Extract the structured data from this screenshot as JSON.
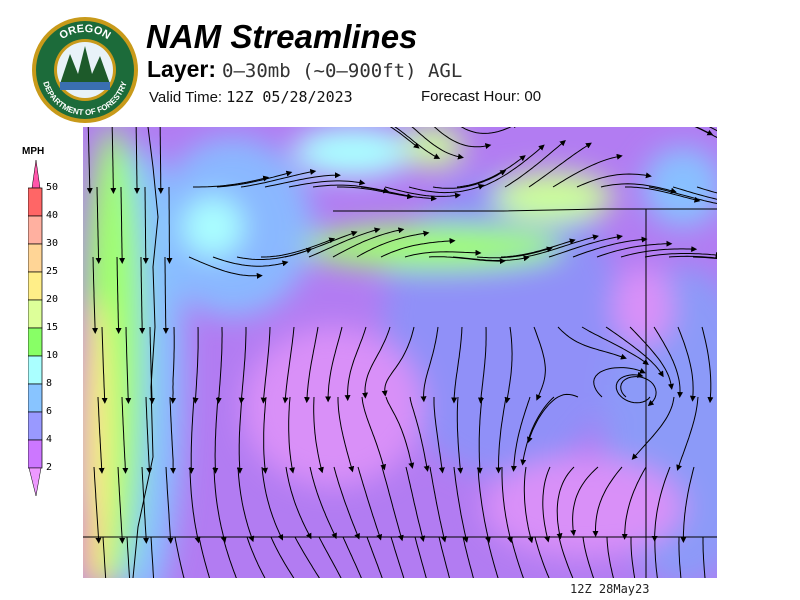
{
  "header": {
    "title": "NAM Streamlines",
    "layer_label": "Layer:",
    "layer_value": "0–30mb (~0–900ft) AGL",
    "valid_label": "Valid Time:",
    "valid_value": "12Z 05/28/2023",
    "forecast_label": "Forecast Hour:",
    "forecast_value": "00"
  },
  "logo": {
    "top_text": "OREGON",
    "bottom_text": "DEPARTMENT OF FORESTRY"
  },
  "colorbar": {
    "unit": "MPH",
    "ticks": [
      "50",
      "40",
      "30",
      "25",
      "20",
      "15",
      "10",
      "8",
      "6",
      "4",
      "2"
    ],
    "colors": [
      "#ff6666",
      "#ffb0a0",
      "#ffd596",
      "#ffee88",
      "#ddff99",
      "#88ff66",
      "#aaffff",
      "#88c4ff",
      "#9999ff",
      "#cc77ff"
    ],
    "over_color": "#ff55aa",
    "under_color": "#ee99ff"
  },
  "map": {
    "footer_stamp": "12Z 28May23"
  }
}
